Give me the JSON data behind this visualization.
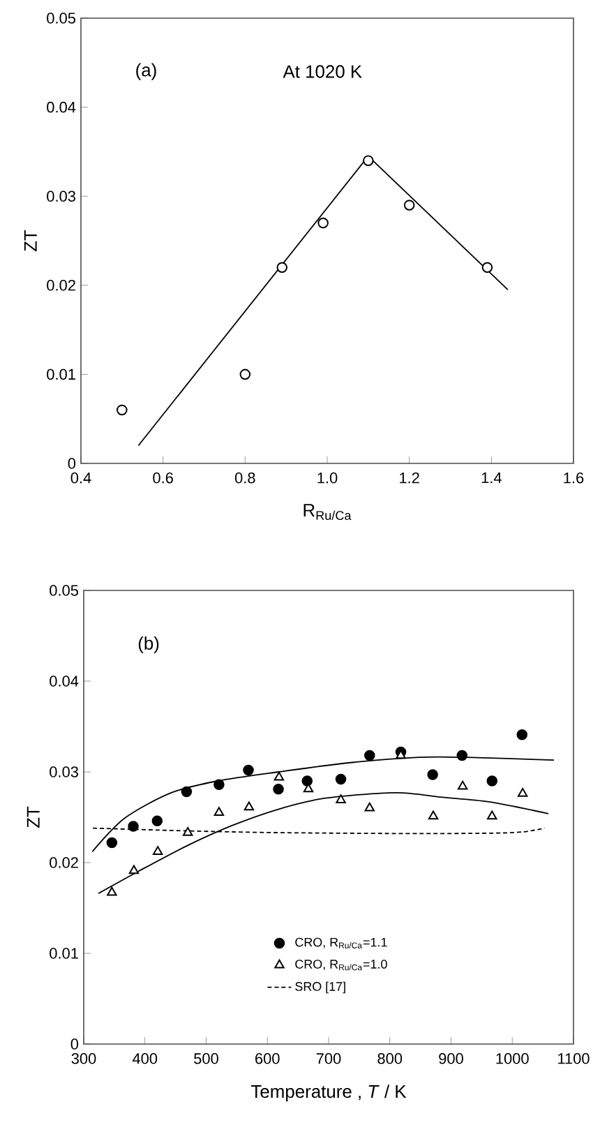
{
  "chart_data": [
    {
      "type": "scatter",
      "xlabel": "R$_{Ru/Ca}$",
      "ylabel": "ZT",
      "annotations": [
        "(a)",
        "At 1020 K"
      ],
      "xlim": [
        0.4,
        1.6
      ],
      "ylim": [
        0,
        0.05
      ],
      "xticks": [
        0.4,
        0.6,
        0.8,
        {
          "value": 1,
          "label": "1.0"
        },
        1.2,
        1.4,
        1.6
      ],
      "yticks": [
        0,
        0.01,
        0.02,
        0.03,
        0.04,
        0.05
      ],
      "series": [
        {
          "marker": "circle",
          "color": "#000000",
          "x": [
            0.5,
            0.8,
            0.89,
            0.99,
            1.1,
            1.2,
            1.39
          ],
          "values": [
            0.006,
            0.01,
            0.022,
            0.027,
            0.034,
            0.029,
            0.022
          ]
        },
        {
          "type": "line",
          "marker": "none",
          "line_style": "solid",
          "color": "#000000",
          "x": [
            0.54,
            1.1,
            1.44
          ],
          "values": [
            0.002,
            0.0345,
            0.0195
          ]
        }
      ]
    },
    {
      "type": "scatter",
      "xlabel": "Temperature , *T* / K",
      "ylabel": "ZT",
      "annotations": [
        "(b)"
      ],
      "legend": "bottom",
      "xlim": [
        300,
        1100
      ],
      "ylim": [
        0,
        0.05
      ],
      "xticks": [
        300,
        400,
        500,
        600,
        700,
        800,
        900,
        1000,
        1100
      ],
      "yticks": [
        0,
        0.01,
        0.02,
        0.03,
        0.04,
        0.05
      ],
      "series": [
        {
          "name": "CRO, R$_{Ru/Ca}$=1.1",
          "marker": "circle",
          "color": "#000000",
          "x": [
            346,
            381,
            420,
            468,
            521,
            569,
            618,
            665,
            720,
            767,
            818,
            870,
            918,
            967,
            1016
          ],
          "values": [
            0.0222,
            0.024,
            0.0246,
            0.0278,
            0.0286,
            0.0302,
            0.0281,
            0.029,
            0.0292,
            0.0318,
            0.0322,
            0.0297,
            0.0318,
            0.029,
            0.0341
          ]
        },
        {
          "name": "CRO, R$_{Ru/Ca}$=1.0",
          "marker": "triangle",
          "color": "#000000",
          "x": [
            346,
            382,
            421,
            470,
            521,
            570,
            619,
            667,
            720,
            767,
            818,
            871,
            919,
            967,
            1017
          ],
          "values": [
            0.0167,
            0.0191,
            0.0212,
            0.0233,
            0.0255,
            0.0261,
            0.0294,
            0.0281,
            0.0269,
            0.026,
            0.0318,
            0.0251,
            0.0284,
            0.0251,
            0.0276
          ]
        },
        {
          "name": "SRO [17]",
          "type": "line",
          "marker": "none",
          "line_style": "dashed",
          "color": "#000000",
          "x": [
            315,
            467,
            619,
            848,
            1000,
            1053
          ],
          "values": [
            0.0238,
            0.0235,
            0.0233,
            0.0232,
            0.0233,
            0.0238
          ]
        },
        {
          "type": "line",
          "marker": "none",
          "line_style": "solid",
          "color": "#000000",
          "x": [
            314,
            367,
            443,
            519,
            619,
            733,
            848,
            924,
            1068
          ],
          "values": [
            0.0212,
            0.0249,
            0.0277,
            0.029,
            0.03,
            0.031,
            0.0316,
            0.0316,
            0.0313
          ]
        },
        {
          "type": "line",
          "marker": "none",
          "line_style": "solid",
          "color": "#000000",
          "x": [
            324,
            391,
            467,
            543,
            619,
            695,
            809,
            886,
            962,
            1059
          ],
          "values": [
            0.0166,
            0.0191,
            0.0218,
            0.0241,
            0.0259,
            0.0271,
            0.0277,
            0.0272,
            0.0267,
            0.0254
          ]
        }
      ]
    }
  ]
}
